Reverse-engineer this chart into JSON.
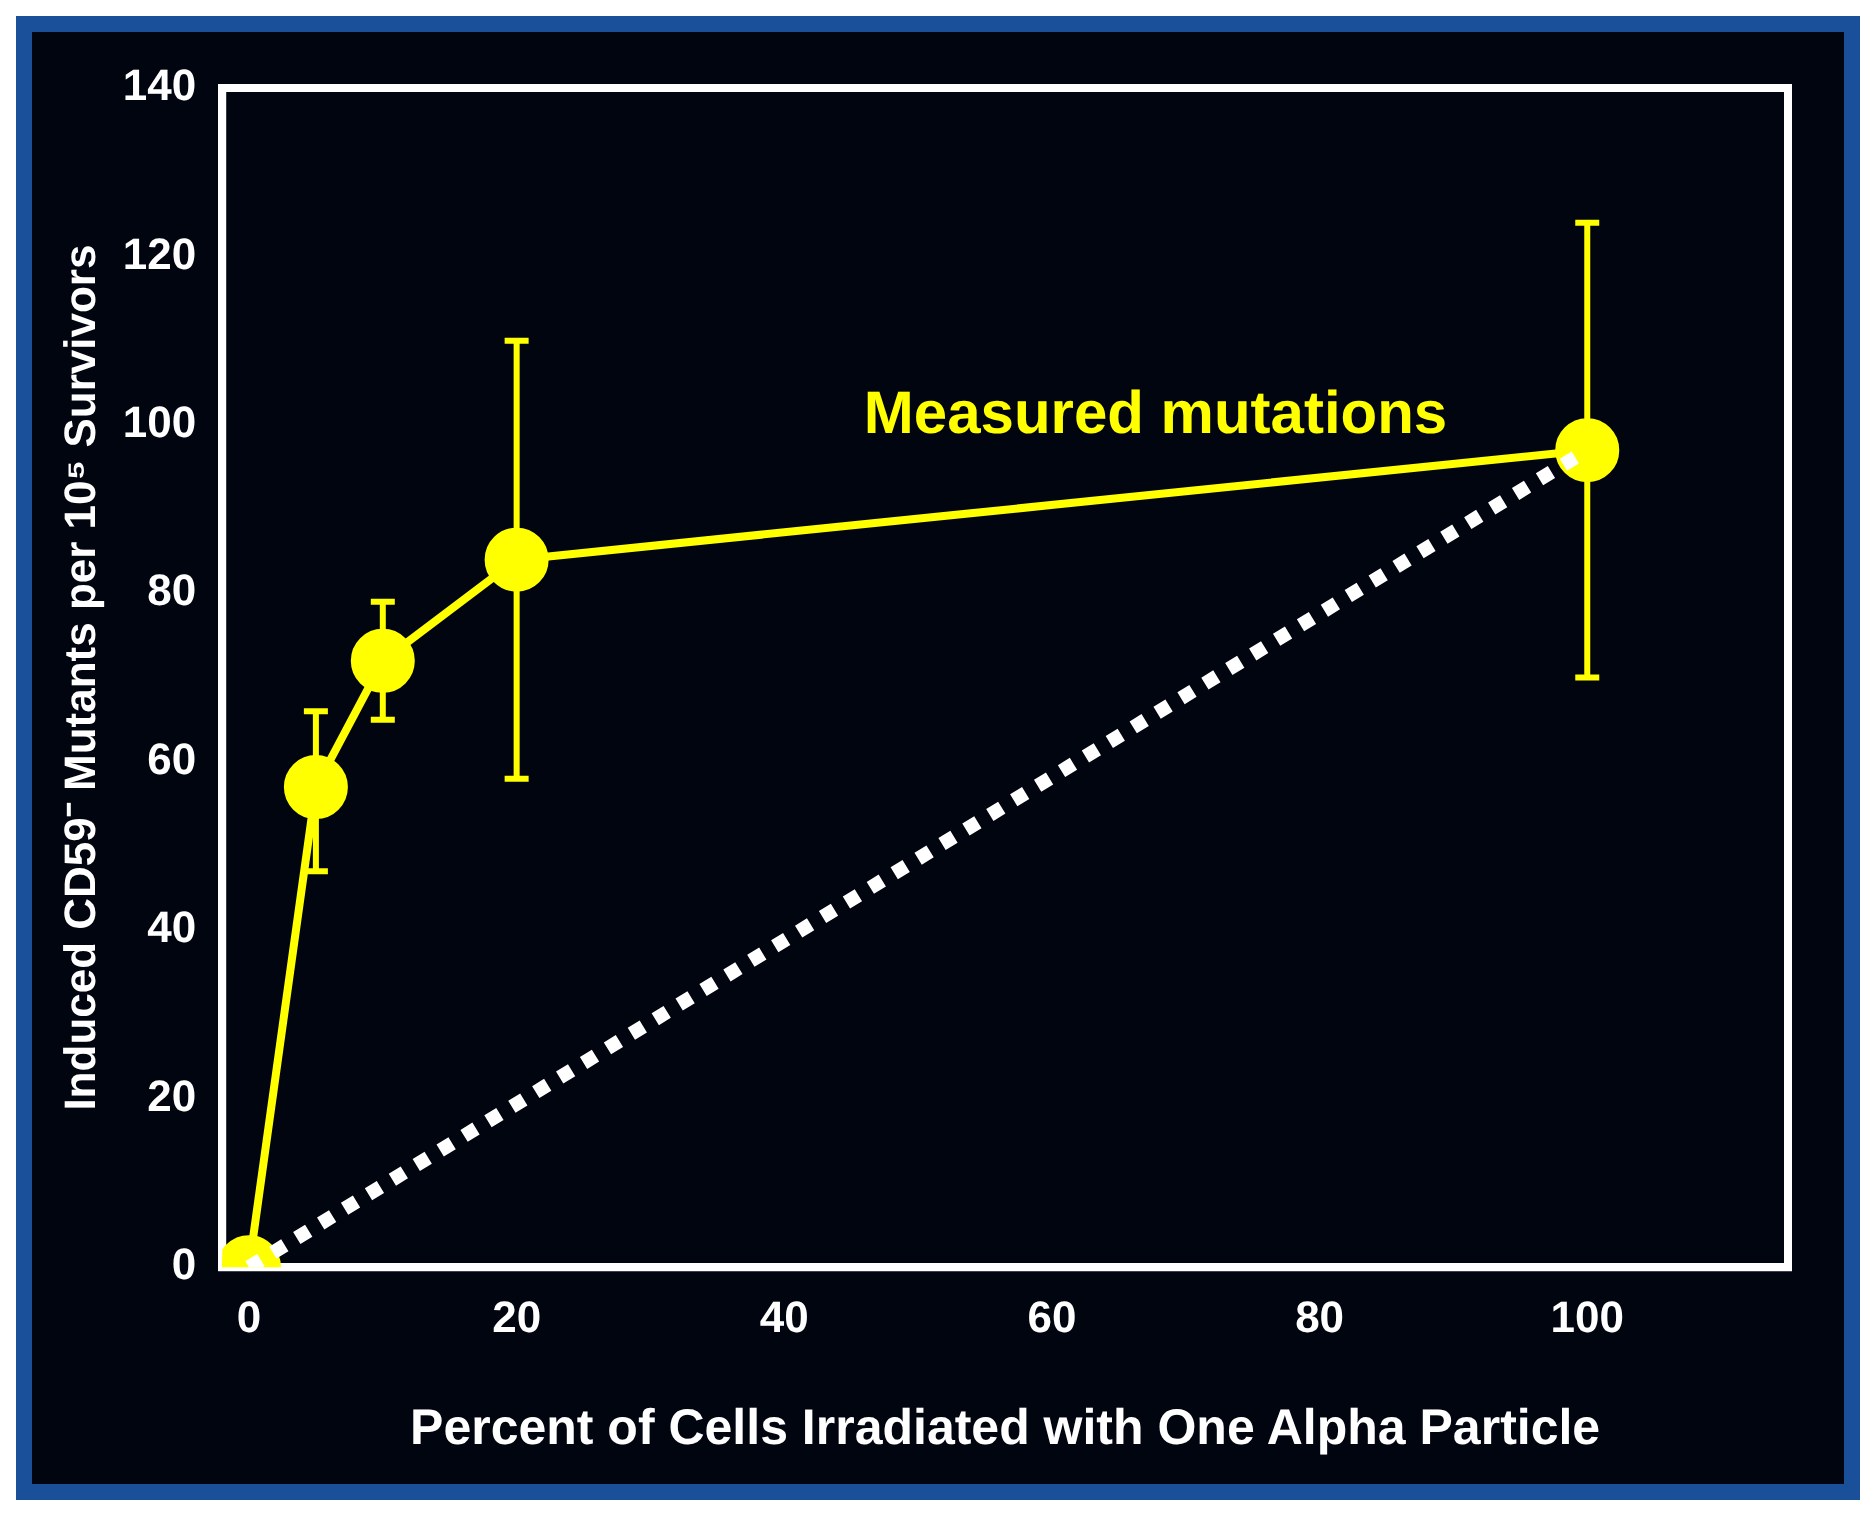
{
  "chart_data": {
    "type": "line",
    "xlabel": "Percent of Cells Irradiated with One Alpha Particle",
    "ylabel": "Induced CD59⁻ Mutants per 10⁵ Survivors",
    "xlim": [
      -2,
      115
    ],
    "xticks": [
      0,
      20,
      40,
      60,
      80,
      100
    ],
    "ylim": [
      0,
      140
    ],
    "yticks": [
      0,
      20,
      40,
      60,
      80,
      100,
      120,
      140
    ],
    "grid": false,
    "legend": false,
    "series": [
      {
        "type": "line",
        "x": [
          0,
          100
        ],
        "values": [
          0,
          97
        ],
        "color": "#ffffff",
        "line_style": "dotted",
        "marker": "none"
      },
      {
        "type": "line",
        "name": "Measured mutations",
        "x": [
          0,
          5,
          10,
          20,
          100
        ],
        "values": [
          0,
          57,
          72,
          84,
          97
        ],
        "color": "#ffff00",
        "marker": "circle",
        "line_style": "solid",
        "errors": [
          null,
          [
            47,
            66
          ],
          [
            65,
            79
          ],
          [
            58,
            110
          ],
          [
            70,
            124
          ]
        ]
      }
    ]
  }
}
